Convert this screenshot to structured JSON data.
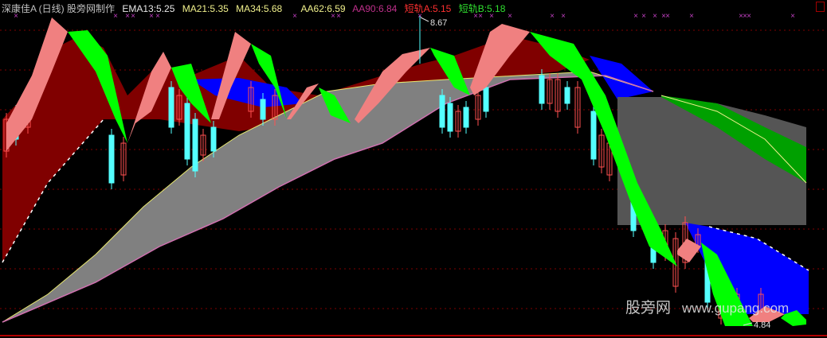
{
  "legend": {
    "title": "深康佳A (日线) 股旁网制作",
    "ema13": "EMA13:5.25",
    "ma21": "MA21:5.35",
    "ma34": "MA34:5.68",
    "aa62": "AA62:6.59",
    "aa90": "AA90:6.84",
    "short_a": "短轨A:5.15",
    "short_b": "短轨B:5.18"
  },
  "watermark": {
    "cn": "股旁网",
    "url": "www.gupang.com"
  },
  "colors": {
    "up_candle": "#ff5050",
    "down_candle": "#54ffff",
    "ribbon_up": "#f08080",
    "ribbon_down": "#00ff00",
    "dark_red": "#800000",
    "blue": "#0000ff",
    "gray": "#808080",
    "dark_gray": "#555555",
    "green_band": "#00a000",
    "grid": "#800000"
  },
  "chart_data": {
    "type": "line",
    "title": "",
    "series": [
      {
        "name": "EMA13",
        "last": 5.25
      },
      {
        "name": "MA21",
        "last": 5.35
      },
      {
        "name": "MA34",
        "last": 5.68
      },
      {
        "name": "AA62",
        "last": 6.59
      },
      {
        "name": "AA90",
        "last": 6.84
      },
      {
        "name": "短轨A",
        "last": 5.15
      },
      {
        "name": "短轨B",
        "last": 5.18
      }
    ],
    "annotations": {
      "max_price": "8.67",
      "min_price": "4.84"
    },
    "grid": true,
    "candlestick": true
  }
}
